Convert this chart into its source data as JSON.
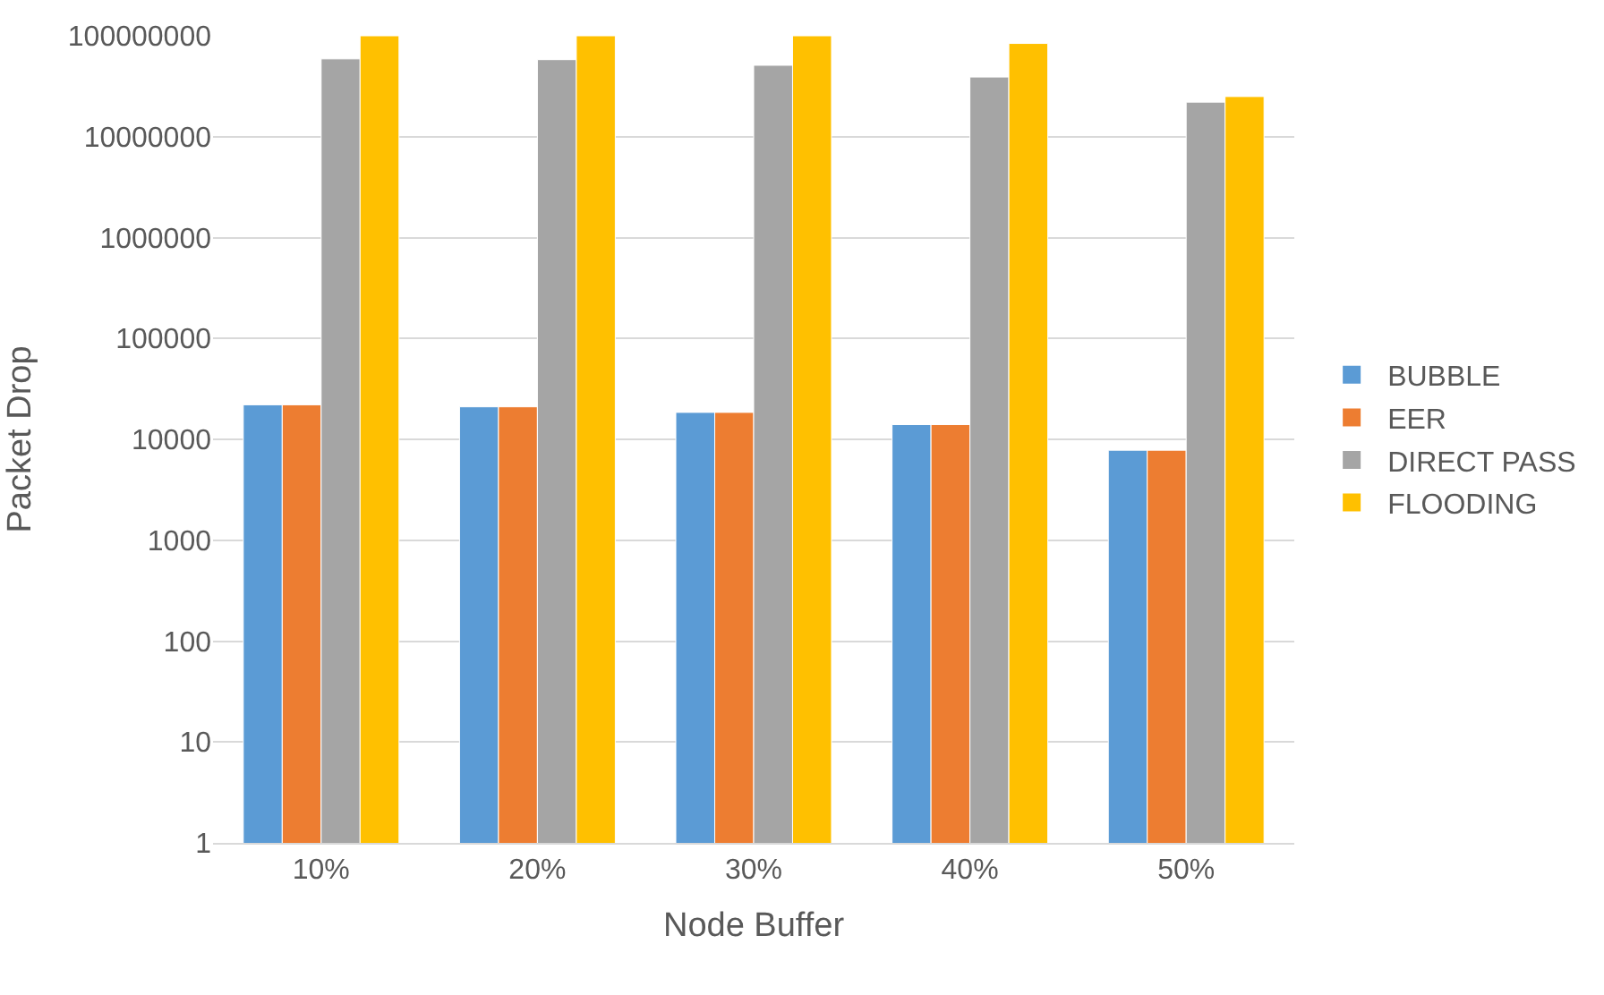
{
  "chart_data": {
    "type": "bar",
    "xlabel": "Node Buffer",
    "ylabel": "Packet Drop",
    "categories": [
      "10%",
      "20%",
      "30%",
      "40%",
      "50%"
    ],
    "series": [
      {
        "name": "BUBBLE",
        "color": "#5b9bd5",
        "values": [
          22000,
          21000,
          18500,
          14000,
          7800
        ]
      },
      {
        "name": "EER",
        "color": "#ed7d31",
        "values": [
          22000,
          21000,
          18500,
          14000,
          7800
        ]
      },
      {
        "name": "DIRECT PASS",
        "color": "#a5a5a5",
        "values": [
          59000000,
          58000000,
          51000000,
          39000000,
          22000000
        ]
      },
      {
        "name": "FLOODING",
        "color": "#ffc000",
        "values": [
          100000000,
          100000000,
          100000000,
          84000000,
          25000000
        ]
      }
    ],
    "log": true,
    "ylim": [
      1,
      100000000
    ],
    "yticks": [
      1,
      10,
      100,
      1000,
      10000,
      100000,
      1000000,
      10000000,
      100000000
    ],
    "grid": "y",
    "legend": "right"
  }
}
